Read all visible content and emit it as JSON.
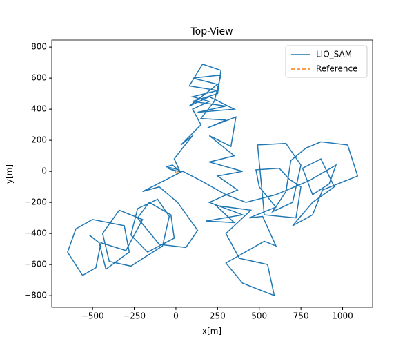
{
  "chart_data": {
    "type": "line",
    "title": "Top-View",
    "xlabel": "x[m]",
    "ylabel": "y[m]",
    "xlim": [
      -745,
      1180
    ],
    "ylim": [
      -875,
      845
    ],
    "xticks": [
      {
        "value": -500,
        "label": "−500"
      },
      {
        "value": -250,
        "label": "−250"
      },
      0,
      250,
      500,
      750,
      1000
    ],
    "yticks": [
      {
        "value": -800,
        "label": "−800"
      },
      {
        "value": -600,
        "label": "−600"
      },
      {
        "value": -400,
        "label": "−400"
      },
      {
        "value": -200,
        "label": "−200"
      },
      0,
      200,
      400,
      600,
      800
    ],
    "legend": "upper right",
    "series": [
      {
        "name": "LIO_SAM",
        "color": "#1f77b4",
        "dash": "solid",
        "x": [
          0,
          -50,
          30,
          -20,
          -60,
          20,
          -10,
          40,
          100,
          30,
          150,
          100,
          200,
          100,
          250,
          80,
          160,
          270,
          250,
          100,
          300,
          130,
          350,
          200,
          80,
          250,
          100,
          270,
          230,
          150,
          300,
          190,
          360,
          330,
          200,
          350,
          200,
          400,
          250,
          370,
          200,
          400,
          180,
          350,
          240,
          450,
          300,
          380,
          550,
          590,
          400,
          300,
          530,
          600,
          520,
          440,
          600,
          500,
          480,
          620,
          680,
          750,
          720,
          530,
          490,
          660,
          750,
          700,
          580,
          660,
          690,
          780,
          870,
          1030,
          1090,
          880,
          820,
          700,
          820,
          950,
          870,
          760,
          820,
          920,
          960,
          800,
          600,
          420,
          300,
          150,
          40,
          -200,
          -100,
          10,
          130,
          60,
          -100,
          -230,
          -160,
          -30,
          -10,
          -170,
          -270,
          -230,
          -110,
          -40,
          -80,
          -270,
          -400,
          -440,
          -340,
          -200,
          -300,
          -450,
          -480,
          -560,
          -650,
          -600,
          -500,
          -310,
          -280,
          -420,
          -460,
          -520
        ],
        "values": [
          0,
          20,
          -5,
          40,
          30,
          10,
          80,
          150,
          230,
          170,
          300,
          400,
          450,
          480,
          520,
          550,
          690,
          650,
          500,
          450,
          420,
          380,
          400,
          480,
          420,
          560,
          600,
          620,
          450,
          340,
          330,
          280,
          350,
          160,
          230,
          100,
          60,
          0,
          -30,
          -120,
          -200,
          -280,
          -320,
          -330,
          -220,
          -250,
          -400,
          -560,
          -600,
          -800,
          -720,
          -590,
          -450,
          -480,
          -290,
          -300,
          -230,
          -100,
          10,
          20,
          -50,
          -100,
          -300,
          -280,
          170,
          180,
          40,
          -200,
          -260,
          -130,
          70,
          150,
          190,
          170,
          -30,
          -120,
          -280,
          -350,
          -200,
          -100,
          80,
          20,
          -150,
          -80,
          40,
          -60,
          -150,
          -200,
          -150,
          -60,
          0,
          -130,
          -100,
          -200,
          -380,
          -490,
          -470,
          -300,
          -200,
          -280,
          -430,
          -520,
          -410,
          -240,
          -180,
          -290,
          -480,
          -610,
          -580,
          -400,
          -250,
          -310,
          -510,
          -460,
          -620,
          -670,
          -520,
          -370,
          -310,
          -350,
          -520,
          -630,
          -460,
          -410
        ]
      },
      {
        "name": "Reference",
        "color": "#ff7f0e",
        "dash": "dashed",
        "x": [
          -5,
          0,
          8,
          12,
          6
        ],
        "values": [
          5,
          -10,
          -15,
          -5,
          2
        ]
      }
    ]
  }
}
